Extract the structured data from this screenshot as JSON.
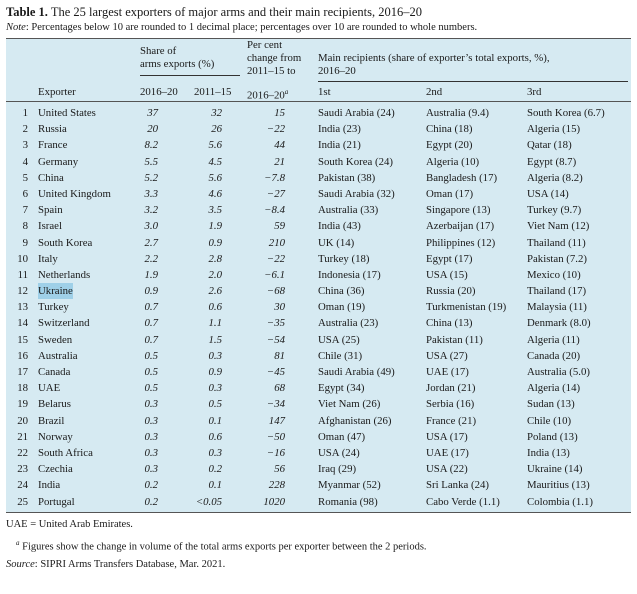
{
  "title_bold": "Table 1.",
  "title_rest": " The 25 largest exporters of major arms and their main recipients, 2016–20",
  "note_label": "Note",
  "note_text": ": Percentages below 10 are rounded to 1 decimal place; percentages over 10 are rounded to whole numbers.",
  "header": {
    "exporter": "Exporter",
    "share_l1": "Share of",
    "share_l2": "arms exports (%)",
    "share_y1": "2016–20",
    "share_y2": "2011–15",
    "pct_l1": "Per cent",
    "pct_l2": "change from",
    "pct_l3": "2011–15 to",
    "pct_l4": "2016–20",
    "pct_sup": "a",
    "recip_l1": "Main recipients (share of exporter’s total exports, %),",
    "recip_l2": "2016–20",
    "first": "1st",
    "second": "2nd",
    "third": "3rd"
  },
  "rows": [
    {
      "n": "1",
      "exp": "United States",
      "s1": "37",
      "s2": "32",
      "pc": "15",
      "r1": "Saudi Arabia (24)",
      "r2": "Australia (9.4)",
      "r3": "South Korea (6.7)"
    },
    {
      "n": "2",
      "exp": "Russia",
      "s1": "20",
      "s2": "26",
      "pc": "−22",
      "r1": "India (23)",
      "r2": "China (18)",
      "r3": "Algeria (15)"
    },
    {
      "n": "3",
      "exp": "France",
      "s1": "8.2",
      "s2": "5.6",
      "pc": "44",
      "r1": "India (21)",
      "r2": "Egypt (20)",
      "r3": "Qatar (18)"
    },
    {
      "n": "4",
      "exp": "Germany",
      "s1": "5.5",
      "s2": "4.5",
      "pc": "21",
      "r1": "South Korea (24)",
      "r2": "Algeria (10)",
      "r3": "Egypt (8.7)"
    },
    {
      "n": "5",
      "exp": "China",
      "s1": "5.2",
      "s2": "5.6",
      "pc": "−7.8",
      "r1": "Pakistan (38)",
      "r2": "Bangladesh (17)",
      "r3": "Algeria (8.2)"
    },
    {
      "n": "6",
      "exp": "United Kingdom",
      "s1": "3.3",
      "s2": "4.6",
      "pc": "−27",
      "r1": "Saudi Arabia (32)",
      "r2": "Oman (17)",
      "r3": "USA (14)"
    },
    {
      "n": "7",
      "exp": "Spain",
      "s1": "3.2",
      "s2": "3.5",
      "pc": "−8.4",
      "r1": "Australia (33)",
      "r2": "Singapore (13)",
      "r3": "Turkey (9.7)"
    },
    {
      "n": "8",
      "exp": "Israel",
      "s1": "3.0",
      "s2": "1.9",
      "pc": "59",
      "r1": "India (43)",
      "r2": "Azerbaijan (17)",
      "r3": "Viet Nam (12)"
    },
    {
      "n": "9",
      "exp": "South Korea",
      "s1": "2.7",
      "s2": "0.9",
      "pc": "210",
      "r1": "UK (14)",
      "r2": "Philippines (12)",
      "r3": "Thailand (11)"
    },
    {
      "n": "10",
      "exp": "Italy",
      "s1": "2.2",
      "s2": "2.8",
      "pc": "−22",
      "r1": "Turkey (18)",
      "r2": "Egypt (17)",
      "r3": "Pakistan (7.2)"
    },
    {
      "n": "11",
      "exp": "Netherlands",
      "s1": "1.9",
      "s2": "2.0",
      "pc": "−6.1",
      "r1": "Indonesia (17)",
      "r2": "USA (15)",
      "r3": "Mexico (10)"
    },
    {
      "n": "12",
      "exp": "Ukraine",
      "s1": "0.9",
      "s2": "2.6",
      "pc": "−68",
      "r1": "China (36)",
      "r2": "Russia (20)",
      "r3": "Thailand (17)"
    },
    {
      "n": "13",
      "exp": "Turkey",
      "s1": "0.7",
      "s2": "0.6",
      "pc": "30",
      "r1": "Oman (19)",
      "r2": "Turkmenistan (19)",
      "r3": "Malaysia (11)"
    },
    {
      "n": "14",
      "exp": "Switzerland",
      "s1": "0.7",
      "s2": "1.1",
      "pc": "−35",
      "r1": "Australia (23)",
      "r2": "China (13)",
      "r3": "Denmark (8.0)"
    },
    {
      "n": "15",
      "exp": "Sweden",
      "s1": "0.7",
      "s2": "1.5",
      "pc": "−54",
      "r1": "USA (25)",
      "r2": "Pakistan (11)",
      "r3": "Algeria (11)"
    },
    {
      "n": "16",
      "exp": "Australia",
      "s1": "0.5",
      "s2": "0.3",
      "pc": "81",
      "r1": "Chile (31)",
      "r2": "USA (27)",
      "r3": "Canada (20)"
    },
    {
      "n": "17",
      "exp": "Canada",
      "s1": "0.5",
      "s2": "0.9",
      "pc": "−45",
      "r1": "Saudi Arabia (49)",
      "r2": "UAE (17)",
      "r3": "Australia (5.0)"
    },
    {
      "n": "18",
      "exp": "UAE",
      "s1": "0.5",
      "s2": "0.3",
      "pc": "68",
      "r1": "Egypt (34)",
      "r2": "Jordan (21)",
      "r3": "Algeria (14)"
    },
    {
      "n": "19",
      "exp": "Belarus",
      "s1": "0.3",
      "s2": "0.5",
      "pc": "−34",
      "r1": "Viet Nam (26)",
      "r2": "Serbia (16)",
      "r3": "Sudan (13)"
    },
    {
      "n": "20",
      "exp": "Brazil",
      "s1": "0.3",
      "s2": "0.1",
      "pc": "147",
      "r1": "Afghanistan (26)",
      "r2": "France (21)",
      "r3": "Chile (10)"
    },
    {
      "n": "21",
      "exp": "Norway",
      "s1": "0.3",
      "s2": "0.6",
      "pc": "−50",
      "r1": "Oman (47)",
      "r2": "USA (17)",
      "r3": "Poland (13)"
    },
    {
      "n": "22",
      "exp": "South Africa",
      "s1": "0.3",
      "s2": "0.3",
      "pc": "−16",
      "r1": "USA (24)",
      "r2": "UAE (17)",
      "r3": "India (13)"
    },
    {
      "n": "23",
      "exp": "Czechia",
      "s1": "0.3",
      "s2": "0.2",
      "pc": "56",
      "r1": "Iraq (29)",
      "r2": "USA (22)",
      "r3": "Ukraine (14)"
    },
    {
      "n": "24",
      "exp": "India",
      "s1": "0.2",
      "s2": "0.1",
      "pc": "228",
      "r1": "Myanmar (52)",
      "r2": "Sri Lanka (24)",
      "r3": "Mauritius (13)"
    },
    {
      "n": "25",
      "exp": "Portugal",
      "s1": "0.2",
      "s2": "<0.05",
      "pc": "1020",
      "r1": "Romania (98)",
      "r2": "Cabo Verde (1.1)",
      "r3": "Colombia (1.1)"
    }
  ],
  "highlight_row": "12",
  "highlight_color": "#9fd0e8",
  "table_bg": "#d6eaf2",
  "footnotes": {
    "uae": "UAE = United Arab Emirates.",
    "a_sup": "a",
    "a_text": "Figures show the change in volume of the total arms exports per exporter between the 2 periods.",
    "source_label": "Source",
    "source_text": ": SIPRI Arms Transfers Database, Mar. 2021."
  }
}
